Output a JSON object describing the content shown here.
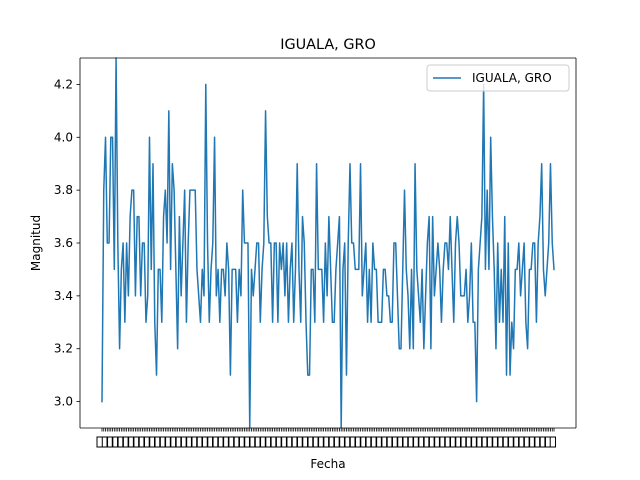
{
  "chart_data": {
    "type": "line",
    "title": "IGUALA, GRO",
    "xlabel": "Fecha",
    "ylabel": "Magnitud",
    "ylim": [
      2.9,
      4.3
    ],
    "yticks": [
      "3.0",
      "3.2",
      "3.4",
      "3.6",
      "3.8",
      "4.0",
      "4.2"
    ],
    "grid": false,
    "legend": {
      "position": "top-right",
      "entries": [
        "IGUALA, GRO"
      ]
    },
    "color": "#1f77b4",
    "series": [
      {
        "name": "IGUALA, GRO",
        "values": [
          3.0,
          3.8,
          4.0,
          3.6,
          3.6,
          4.0,
          4.0,
          3.5,
          4.3,
          3.6,
          3.2,
          3.5,
          3.6,
          3.3,
          3.6,
          3.4,
          3.7,
          3.8,
          3.8,
          3.4,
          3.7,
          3.7,
          3.4,
          3.6,
          3.6,
          3.3,
          3.4,
          4.0,
          3.5,
          3.9,
          3.3,
          3.1,
          3.5,
          3.5,
          3.3,
          3.7,
          3.8,
          3.6,
          4.1,
          3.5,
          3.9,
          3.8,
          3.5,
          3.2,
          3.7,
          3.4,
          3.6,
          3.8,
          3.3,
          3.6,
          3.8,
          3.8,
          3.8,
          3.8,
          3.5,
          3.4,
          3.3,
          3.5,
          3.4,
          4.2,
          3.6,
          3.3,
          3.5,
          3.6,
          4.0,
          3.4,
          3.5,
          3.3,
          3.5,
          3.5,
          3.4,
          3.6,
          3.5,
          3.1,
          3.5,
          3.5,
          3.5,
          3.3,
          3.5,
          3.4,
          3.8,
          3.6,
          3.6,
          3.6,
          2.9,
          3.5,
          3.4,
          3.5,
          3.6,
          3.6,
          3.3,
          3.5,
          3.6,
          4.1,
          3.7,
          3.6,
          3.6,
          3.3,
          3.6,
          3.6,
          3.3,
          3.6,
          3.5,
          3.6,
          3.4,
          3.6,
          3.3,
          3.5,
          3.6,
          3.3,
          3.5,
          3.9,
          3.5,
          3.3,
          3.7,
          3.6,
          3.3,
          3.1,
          3.1,
          3.5,
          3.5,
          3.3,
          3.9,
          3.5,
          3.5,
          3.5,
          3.3,
          3.6,
          3.4,
          3.7,
          3.5,
          3.3,
          3.3,
          3.5,
          3.6,
          3.7,
          2.9,
          3.5,
          3.6,
          3.1,
          3.6,
          3.9,
          3.6,
          3.6,
          3.5,
          3.5,
          3.5,
          3.9,
          3.4,
          3.5,
          3.6,
          3.3,
          3.5,
          3.3,
          3.6,
          3.5,
          3.5,
          3.3,
          3.3,
          3.3,
          3.5,
          3.5,
          3.4,
          3.4,
          3.3,
          3.3,
          3.6,
          3.6,
          3.4,
          3.2,
          3.2,
          3.5,
          3.8,
          3.5,
          3.4,
          3.2,
          3.5,
          3.2,
          3.9,
          3.5,
          3.4,
          3.3,
          3.5,
          3.2,
          3.4,
          3.6,
          3.7,
          3.2,
          3.7,
          3.4,
          3.5,
          3.6,
          3.5,
          3.3,
          3.5,
          3.6,
          3.6,
          3.5,
          3.7,
          3.5,
          3.3,
          3.6,
          3.7,
          3.6,
          3.4,
          3.4,
          3.4,
          3.5,
          3.3,
          3.4,
          3.6,
          3.3,
          3.3,
          3.0,
          3.5,
          3.6,
          3.7,
          4.2,
          3.5,
          3.8,
          3.5,
          4.0,
          3.7,
          3.5,
          3.2,
          3.6,
          3.3,
          3.5,
          3.3,
          3.7,
          3.1,
          3.6,
          3.1,
          3.3,
          3.2,
          3.5,
          3.5,
          3.6,
          3.4,
          3.5,
          3.6,
          3.3,
          3.2,
          3.5,
          3.5,
          3.6,
          3.6,
          3.3,
          3.6,
          3.7,
          3.9,
          3.5,
          3.4,
          3.5,
          3.6,
          3.9,
          3.6,
          3.5
        ]
      }
    ]
  }
}
